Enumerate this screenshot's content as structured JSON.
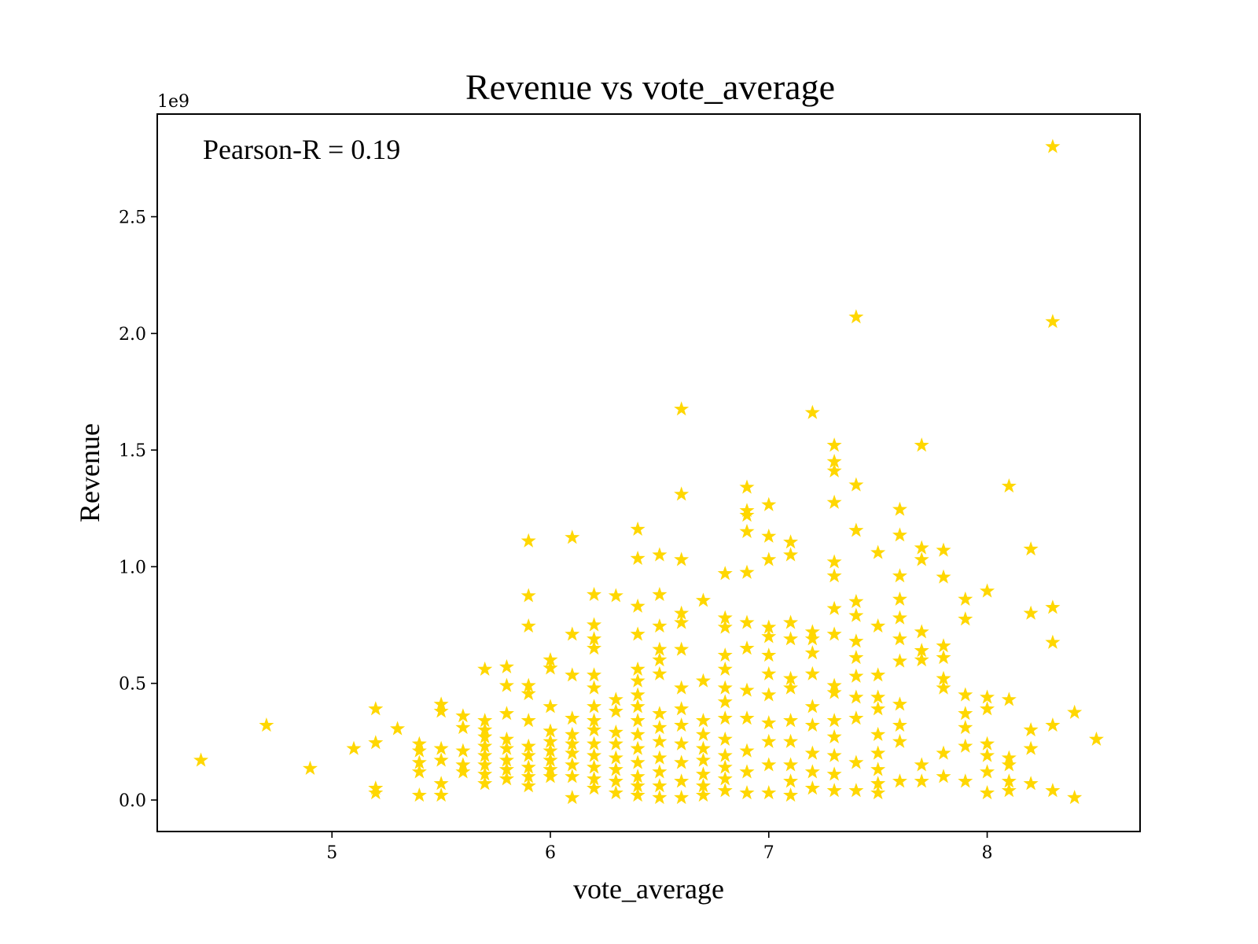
{
  "chart_data": {
    "type": "scatter",
    "title": "Revenue vs vote_average",
    "xlabel": "vote_average",
    "ylabel": "Revenue",
    "y_scale_label": "1e9",
    "annotation": "Pearson-R = 0.19",
    "xlim": [
      4.2,
      8.7
    ],
    "ylim": [
      -0.135,
      2.94
    ],
    "xticks": [
      5,
      6,
      7,
      8
    ],
    "xtick_labels": [
      "5",
      "6",
      "7",
      "8"
    ],
    "yticks": [
      0.0,
      0.5,
      1.0,
      1.5,
      2.0,
      2.5
    ],
    "ytick_labels": [
      "0.0",
      "0.5",
      "1.0",
      "1.5",
      "2.0",
      "2.5"
    ],
    "marker": "star",
    "marker_color": "#FFD700",
    "grid": false,
    "legend": "none",
    "x": [
      4.4,
      4.7,
      4.9,
      5.1,
      5.2,
      5.2,
      5.2,
      5.2,
      5.3,
      5.4,
      5.4,
      5.4,
      5.4,
      5.4,
      5.5,
      5.5,
      5.5,
      5.5,
      5.5,
      5.5,
      5.6,
      5.6,
      5.6,
      5.6,
      5.6,
      5.7,
      5.7,
      5.7,
      5.7,
      5.7,
      5.7,
      5.7,
      5.7,
      5.7,
      5.8,
      5.8,
      5.8,
      5.8,
      5.8,
      5.8,
      5.8,
      5.8,
      5.9,
      5.9,
      5.9,
      5.9,
      5.9,
      5.9,
      5.9,
      5.9,
      5.9,
      5.9,
      5.9,
      6.0,
      6.0,
      6.0,
      6.0,
      6.0,
      6.0,
      6.0,
      6.0,
      6.0,
      6.1,
      6.1,
      6.1,
      6.1,
      6.1,
      6.1,
      6.1,
      6.1,
      6.1,
      6.1,
      6.2,
      6.2,
      6.2,
      6.2,
      6.2,
      6.2,
      6.2,
      6.2,
      6.2,
      6.2,
      6.2,
      6.2,
      6.2,
      6.2,
      6.3,
      6.3,
      6.3,
      6.3,
      6.3,
      6.3,
      6.3,
      6.3,
      6.3,
      6.4,
      6.4,
      6.4,
      6.4,
      6.4,
      6.4,
      6.4,
      6.4,
      6.4,
      6.4,
      6.4,
      6.4,
      6.4,
      6.4,
      6.4,
      6.5,
      6.5,
      6.5,
      6.5,
      6.5,
      6.5,
      6.5,
      6.5,
      6.5,
      6.5,
      6.5,
      6.5,
      6.5,
      6.6,
      6.6,
      6.6,
      6.6,
      6.6,
      6.6,
      6.6,
      6.6,
      6.6,
      6.6,
      6.6,
      6.6,
      6.6,
      6.7,
      6.7,
      6.7,
      6.7,
      6.7,
      6.7,
      6.7,
      6.7,
      6.7,
      6.8,
      6.8,
      6.8,
      6.8,
      6.8,
      6.8,
      6.8,
      6.8,
      6.8,
      6.8,
      6.8,
      6.8,
      6.8,
      6.9,
      6.9,
      6.9,
      6.9,
      6.9,
      6.9,
      6.9,
      6.9,
      6.9,
      6.9,
      6.9,
      6.9,
      7.0,
      7.0,
      7.0,
      7.0,
      7.0,
      7.0,
      7.0,
      7.0,
      7.0,
      7.0,
      7.0,
      7.0,
      7.1,
      7.1,
      7.1,
      7.1,
      7.1,
      7.1,
      7.1,
      7.1,
      7.1,
      7.1,
      7.1,
      7.2,
      7.2,
      7.2,
      7.2,
      7.2,
      7.2,
      7.2,
      7.2,
      7.2,
      7.2,
      7.3,
      7.3,
      7.3,
      7.3,
      7.3,
      7.3,
      7.3,
      7.3,
      7.3,
      7.3,
      7.3,
      7.3,
      7.3,
      7.3,
      7.3,
      7.4,
      7.4,
      7.4,
      7.4,
      7.4,
      7.4,
      7.4,
      7.4,
      7.4,
      7.4,
      7.4,
      7.4,
      7.5,
      7.5,
      7.5,
      7.5,
      7.5,
      7.5,
      7.5,
      7.5,
      7.5,
      7.5,
      7.6,
      7.6,
      7.6,
      7.6,
      7.6,
      7.6,
      7.6,
      7.6,
      7.6,
      7.6,
      7.6,
      7.7,
      7.7,
      7.7,
      7.7,
      7.7,
      7.7,
      7.7,
      7.7,
      7.8,
      7.8,
      7.8,
      7.8,
      7.8,
      7.8,
      7.8,
      7.8,
      7.9,
      7.9,
      7.9,
      7.9,
      7.9,
      7.9,
      7.9,
      8.0,
      8.0,
      8.0,
      8.0,
      8.0,
      8.0,
      8.0,
      8.1,
      8.1,
      8.1,
      8.1,
      8.1,
      8.1,
      8.2,
      8.2,
      8.2,
      8.2,
      8.2,
      8.3,
      8.3,
      8.3,
      8.3,
      8.3,
      8.3,
      8.4,
      8.4,
      8.5
    ],
    "y": [
      0.17,
      0.32,
      0.135,
      0.22,
      0.39,
      0.245,
      0.05,
      0.03,
      0.305,
      0.24,
      0.21,
      0.16,
      0.12,
      0.02,
      0.41,
      0.38,
      0.22,
      0.17,
      0.07,
      0.02,
      0.36,
      0.31,
      0.21,
      0.15,
      0.12,
      0.56,
      0.34,
      0.3,
      0.27,
      0.23,
      0.19,
      0.15,
      0.11,
      0.07,
      0.57,
      0.49,
      0.37,
      0.26,
      0.22,
      0.17,
      0.13,
      0.09,
      1.11,
      0.875,
      0.745,
      0.49,
      0.455,
      0.34,
      0.23,
      0.19,
      0.14,
      0.1,
      0.06,
      0.6,
      0.565,
      0.4,
      0.295,
      0.25,
      0.21,
      0.17,
      0.13,
      0.1,
      1.125,
      0.71,
      0.535,
      0.35,
      0.28,
      0.24,
      0.2,
      0.15,
      0.1,
      0.01,
      0.88,
      0.75,
      0.69,
      0.65,
      0.535,
      0.48,
      0.4,
      0.34,
      0.3,
      0.24,
      0.19,
      0.14,
      0.09,
      0.05,
      0.875,
      0.43,
      0.38,
      0.29,
      0.24,
      0.18,
      0.13,
      0.08,
      0.03,
      1.16,
      1.035,
      0.83,
      0.71,
      0.56,
      0.51,
      0.45,
      0.4,
      0.34,
      0.28,
      0.22,
      0.16,
      0.1,
      0.06,
      0.02,
      1.05,
      0.88,
      0.745,
      0.645,
      0.6,
      0.54,
      0.37,
      0.31,
      0.25,
      0.18,
      0.12,
      0.06,
      0.01,
      1.675,
      1.31,
      1.03,
      0.8,
      0.76,
      0.645,
      0.48,
      0.39,
      0.32,
      0.24,
      0.16,
      0.08,
      0.01,
      0.855,
      0.51,
      0.34,
      0.28,
      0.22,
      0.17,
      0.11,
      0.06,
      0.02,
      0.97,
      0.78,
      0.74,
      0.62,
      0.56,
      0.48,
      0.42,
      0.35,
      0.26,
      0.19,
      0.14,
      0.09,
      0.04,
      1.34,
      1.24,
      1.22,
      1.15,
      0.975,
      0.76,
      0.65,
      0.47,
      0.35,
      0.21,
      0.12,
      0.03,
      1.265,
      1.13,
      1.03,
      0.74,
      0.7,
      0.62,
      0.54,
      0.45,
      0.33,
      0.25,
      0.15,
      0.03,
      1.105,
      1.05,
      0.76,
      0.69,
      0.52,
      0.48,
      0.34,
      0.25,
      0.15,
      0.08,
      0.02,
      1.66,
      0.72,
      0.69,
      0.63,
      0.54,
      0.4,
      0.32,
      0.2,
      0.12,
      0.05,
      1.52,
      1.45,
      1.41,
      1.275,
      1.02,
      0.96,
      0.82,
      0.71,
      0.49,
      0.46,
      0.34,
      0.27,
      0.19,
      0.11,
      0.04,
      2.07,
      1.35,
      1.155,
      0.85,
      0.79,
      0.68,
      0.61,
      0.53,
      0.44,
      0.35,
      0.16,
      0.04,
      1.06,
      0.745,
      0.535,
      0.44,
      0.39,
      0.28,
      0.2,
      0.13,
      0.07,
      0.03,
      1.245,
      1.135,
      0.96,
      0.86,
      0.78,
      0.69,
      0.595,
      0.41,
      0.32,
      0.25,
      0.08,
      1.52,
      1.08,
      1.03,
      0.72,
      0.64,
      0.6,
      0.15,
      0.08,
      1.07,
      0.955,
      0.66,
      0.61,
      0.52,
      0.48,
      0.2,
      0.1,
      0.86,
      0.775,
      0.45,
      0.37,
      0.31,
      0.23,
      0.08,
      0.895,
      0.44,
      0.39,
      0.24,
      0.19,
      0.12,
      0.03,
      1.345,
      0.43,
      0.18,
      0.15,
      0.08,
      0.04,
      1.075,
      0.8,
      0.3,
      0.22,
      0.07,
      2.8,
      2.05,
      0.825,
      0.675,
      0.32,
      0.04,
      0.375,
      0.01,
      0.26
    ]
  }
}
